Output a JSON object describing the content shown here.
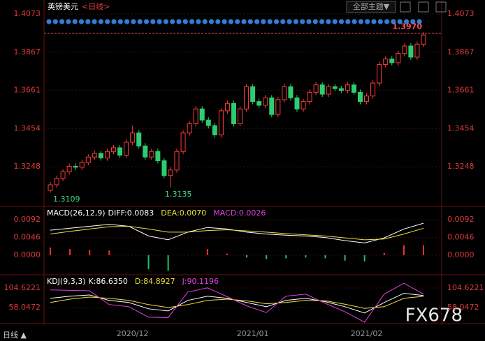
{
  "header": {
    "symbol": "英镑美元",
    "period": "<日线>",
    "theme": "全部主题▼"
  },
  "footer": {
    "period": "日线 ▲"
  },
  "watermark": "FX678",
  "chart_data": [
    {
      "type": "candlestick",
      "up_color": "#ff3b3b",
      "down_color": "#2ecc71",
      "ylim": [
        1.3037,
        1.413
      ],
      "yticks": [
        1.4073,
        1.3867,
        1.3661,
        1.3454,
        1.3248
      ],
      "price_line": {
        "value": 1.397,
        "label": "1.3970"
      },
      "categories": [
        null,
        null,
        null,
        null,
        null,
        null,
        null,
        null,
        null,
        null,
        null,
        null,
        null,
        "2020/12",
        null,
        null,
        null,
        null,
        null,
        null,
        null,
        null,
        null,
        null,
        null,
        null,
        null,
        null,
        null,
        null,
        null,
        null,
        "2021/01",
        null,
        null,
        null,
        null,
        null,
        null,
        null,
        null,
        null,
        null,
        null,
        null,
        null,
        null,
        null,
        null,
        null,
        "2021/02",
        null,
        null,
        null,
        null,
        null,
        null,
        null,
        null,
        null
      ],
      "open": [
        1.312,
        1.315,
        1.3185,
        1.322,
        1.325,
        1.3245,
        1.327,
        1.33,
        1.332,
        1.3295,
        1.333,
        1.335,
        1.331,
        1.338,
        1.343,
        1.336,
        1.33,
        1.333,
        1.328,
        1.32,
        1.323,
        1.333,
        1.343,
        1.348,
        1.356,
        1.35,
        1.347,
        1.342,
        1.355,
        1.359,
        1.348,
        1.356,
        1.368,
        1.36,
        1.358,
        1.362,
        1.353,
        1.361,
        1.368,
        1.362,
        1.356,
        1.36,
        1.365,
        1.369,
        1.364,
        1.368,
        1.367,
        1.366,
        1.369,
        1.365,
        1.36,
        1.363,
        1.37,
        1.38,
        1.383,
        1.381,
        1.386,
        1.39,
        1.384,
        1.391
      ],
      "high": [
        1.3165,
        1.32,
        1.3235,
        1.3265,
        1.3265,
        1.3285,
        1.3315,
        1.3335,
        1.3335,
        1.3345,
        1.3365,
        1.3365,
        1.3395,
        1.347,
        1.3445,
        1.3375,
        1.3345,
        1.3345,
        1.3295,
        1.3245,
        1.3345,
        1.3445,
        1.3495,
        1.3575,
        1.3575,
        1.3515,
        1.3485,
        1.3565,
        1.3605,
        1.3605,
        1.3575,
        1.3695,
        1.3695,
        1.3615,
        1.3635,
        1.3635,
        1.3625,
        1.3695,
        1.3695,
        1.3635,
        1.3615,
        1.3665,
        1.3705,
        1.3705,
        1.3695,
        1.3695,
        1.3685,
        1.3705,
        1.3705,
        1.3665,
        1.3645,
        1.3715,
        1.3815,
        1.3845,
        1.3845,
        1.3875,
        1.3915,
        1.3915,
        1.3925,
        1.3975
      ],
      "low": [
        1.3109,
        1.3135,
        1.317,
        1.3205,
        1.323,
        1.323,
        1.3255,
        1.3285,
        1.328,
        1.328,
        1.3315,
        1.3295,
        1.3295,
        1.3365,
        1.3345,
        1.3285,
        1.3285,
        1.3265,
        1.3185,
        1.3135,
        1.3215,
        1.3315,
        1.3415,
        1.3465,
        1.3485,
        1.3455,
        1.3405,
        1.3405,
        1.3535,
        1.3465,
        1.3465,
        1.3545,
        1.3585,
        1.3565,
        1.3565,
        1.3515,
        1.3515,
        1.3595,
        1.3605,
        1.3545,
        1.3545,
        1.3585,
        1.3635,
        1.3625,
        1.3625,
        1.3655,
        1.3645,
        1.3645,
        1.3635,
        1.3585,
        1.3585,
        1.3615,
        1.3685,
        1.3785,
        1.3795,
        1.3795,
        1.3845,
        1.3825,
        1.3825,
        1.3895
      ],
      "close": [
        1.315,
        1.3185,
        1.322,
        1.325,
        1.3245,
        1.327,
        1.33,
        1.332,
        1.3295,
        1.333,
        1.335,
        1.331,
        1.338,
        1.343,
        1.336,
        1.33,
        1.333,
        1.328,
        1.32,
        1.323,
        1.333,
        1.343,
        1.348,
        1.356,
        1.35,
        1.347,
        1.342,
        1.355,
        1.359,
        1.348,
        1.356,
        1.368,
        1.36,
        1.358,
        1.362,
        1.353,
        1.361,
        1.368,
        1.362,
        1.356,
        1.36,
        1.365,
        1.369,
        1.364,
        1.368,
        1.367,
        1.366,
        1.369,
        1.365,
        1.36,
        1.363,
        1.37,
        1.38,
        1.383,
        1.381,
        1.386,
        1.39,
        1.384,
        1.391,
        1.396
      ]
    },
    {
      "type": "line",
      "title": "MACD(26,12,9)",
      "ylim": [
        -0.0047,
        0.0123
      ],
      "yticks": [
        0.0092,
        0.0046,
        {
          "value": 0,
          "label": "0.0000"
        }
      ],
      "series": [
        {
          "name": "DIFF:0.0083",
          "color": "#ffffff",
          "values": [
            0.0065,
            0.007,
            0.0075,
            0.008,
            0.0075,
            0.005,
            0.004,
            0.006,
            0.0072,
            0.0068,
            0.006,
            0.0055,
            0.0052,
            0.005,
            0.0046,
            0.0038,
            0.0032,
            0.0045,
            0.0068,
            0.0083
          ]
        },
        {
          "name": "DEA:0.0070",
          "color": "#f0e040",
          "values": [
            0.0055,
            0.0062,
            0.0068,
            0.0074,
            0.0075,
            0.0068,
            0.006,
            0.006,
            0.0064,
            0.0066,
            0.0063,
            0.006,
            0.0056,
            0.0053,
            0.005,
            0.0045,
            0.004,
            0.0042,
            0.0055,
            0.007
          ]
        },
        {
          "name": "MACD:0.0026",
          "kind": "bar",
          "color": "#e040e0",
          "up_color": "#ff3030",
          "down_color": "#22c06a",
          "values": [
            0.002,
            0.0016,
            0.0014,
            0.0012,
            0.0,
            -0.0036,
            -0.004,
            0.0,
            0.0016,
            0.0004,
            -0.0006,
            -0.001,
            -0.0008,
            -0.0006,
            -0.0008,
            -0.0014,
            -0.0016,
            0.0006,
            0.0026,
            0.0026
          ]
        }
      ]
    },
    {
      "type": "line",
      "title": "KDJ(9,3,3)",
      "ylim": [
        26.4,
        132.9
      ],
      "yticks": [
        104.6221,
        58.0472
      ],
      "series": [
        {
          "name": "K:86.6350",
          "color": "#ffffff",
          "values": [
            80,
            85,
            88,
            75,
            70,
            55,
            50,
            75,
            85,
            80,
            70,
            60,
            75,
            80,
            72,
            60,
            45,
            70,
            92,
            86.635
          ]
        },
        {
          "name": "D:84.8927",
          "color": "#f0e040",
          "values": [
            70,
            78,
            83,
            80,
            75,
            65,
            58,
            65,
            75,
            78,
            74,
            67,
            70,
            75,
            74,
            66,
            56,
            60,
            80,
            84.8927
          ]
        },
        {
          "name": "J:90.1196",
          "color": "#e040e0",
          "values": [
            100,
            99,
            98,
            65,
            60,
            35,
            34,
            95,
            105,
            84,
            62,
            46,
            85,
            90,
            68,
            48,
            23,
            90,
            116,
            90.1196
          ]
        }
      ]
    }
  ]
}
